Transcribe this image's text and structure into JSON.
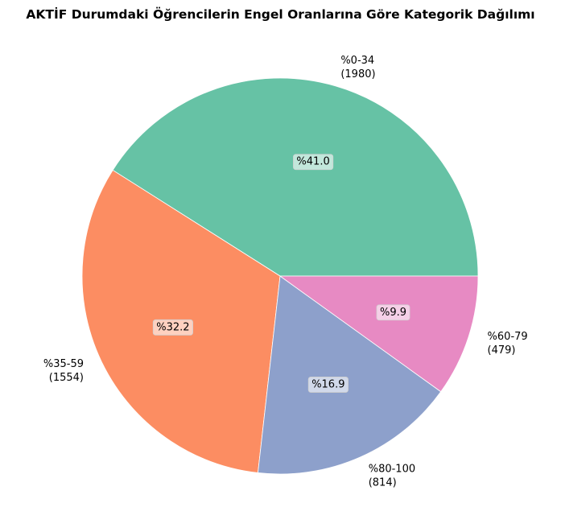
{
  "chart_data": {
    "type": "pie",
    "title": "AKTİF Durumdaki Öğrencilerin Engel Oranlarına Göre Kategorik Dağılımı",
    "slices": [
      {
        "label": "%0-34",
        "count": "(1980)",
        "value": 1980,
        "percent_label": "%41.0",
        "color": "#66c2a5"
      },
      {
        "label": "%35-59",
        "count": "(1554)",
        "value": 1554,
        "percent_label": "%32.2",
        "color": "#fc8d62"
      },
      {
        "label": "%80-100",
        "count": "(814)",
        "value": 814,
        "percent_label": "%16.9",
        "color": "#8da0cb"
      },
      {
        "label": "%60-79",
        "count": "(479)",
        "value": 479,
        "percent_label": "%9.9",
        "color": "#e78ac3"
      }
    ],
    "start_angle": "east",
    "direction": "counterclockwise"
  }
}
